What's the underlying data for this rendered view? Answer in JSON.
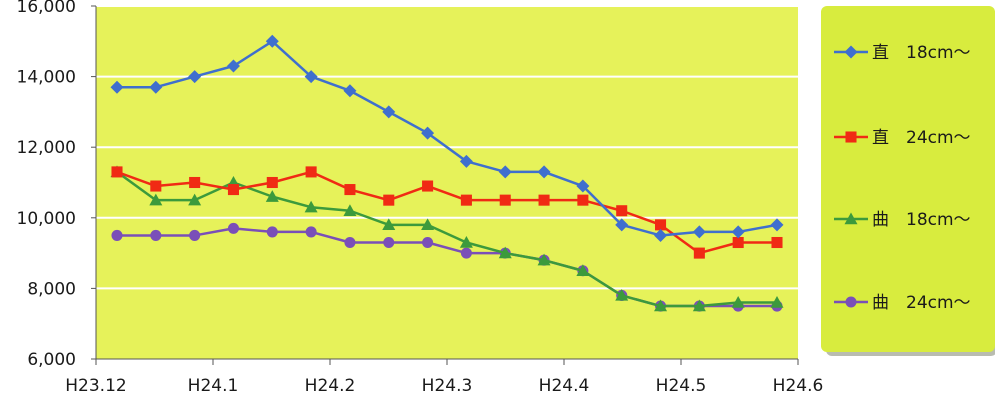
{
  "chart_data": {
    "type": "line",
    "title": "",
    "xlabel": "",
    "ylabel": "",
    "ylim": [
      6000,
      16000
    ],
    "y_ticks": [
      "6,000",
      "8,000",
      "10,000",
      "12,000",
      "14,000",
      "16,000"
    ],
    "y_tick_values": [
      6000,
      8000,
      10000,
      12000,
      14000,
      16000
    ],
    "x_ticks": [
      "H23.12",
      "H24.1",
      "H24.2",
      "H24.3",
      "H24.4",
      "H24.5",
      "H24.6"
    ],
    "grid": "horizontal",
    "legend_position": "right",
    "plot_background": "#e6f25a",
    "legend_background": "#d8ec3e",
    "series": [
      {
        "name": "直　18cm～",
        "color": "#3f6fce",
        "marker": "diamond",
        "values": [
          13700,
          13700,
          14000,
          14300,
          15000,
          14000,
          13600,
          13000,
          12400,
          11600,
          11300,
          11300,
          10900,
          9800,
          9500,
          9600,
          9600,
          9800
        ]
      },
      {
        "name": "直　24cm～",
        "color": "#f02a14",
        "marker": "square",
        "values": [
          11300,
          10900,
          11000,
          10800,
          11000,
          11300,
          10800,
          10500,
          10900,
          10500,
          10500,
          10500,
          10500,
          10200,
          9800,
          9000,
          9300,
          9300
        ]
      },
      {
        "name": "曲　18cm～",
        "color": "#3c9a3c",
        "marker": "triangle",
        "values": [
          11300,
          10500,
          10500,
          11000,
          10600,
          10300,
          10200,
          9800,
          9800,
          9300,
          9000,
          8800,
          8500,
          7800,
          7500,
          7500,
          7600,
          7600
        ]
      },
      {
        "name": "曲　24cm～",
        "color": "#7a4fb8",
        "marker": "circle",
        "values": [
          9500,
          9500,
          9500,
          9700,
          9600,
          9600,
          9300,
          9300,
          9300,
          9000,
          9000,
          8800,
          8500,
          7800,
          7500,
          7500,
          7500,
          7500
        ]
      }
    ]
  }
}
